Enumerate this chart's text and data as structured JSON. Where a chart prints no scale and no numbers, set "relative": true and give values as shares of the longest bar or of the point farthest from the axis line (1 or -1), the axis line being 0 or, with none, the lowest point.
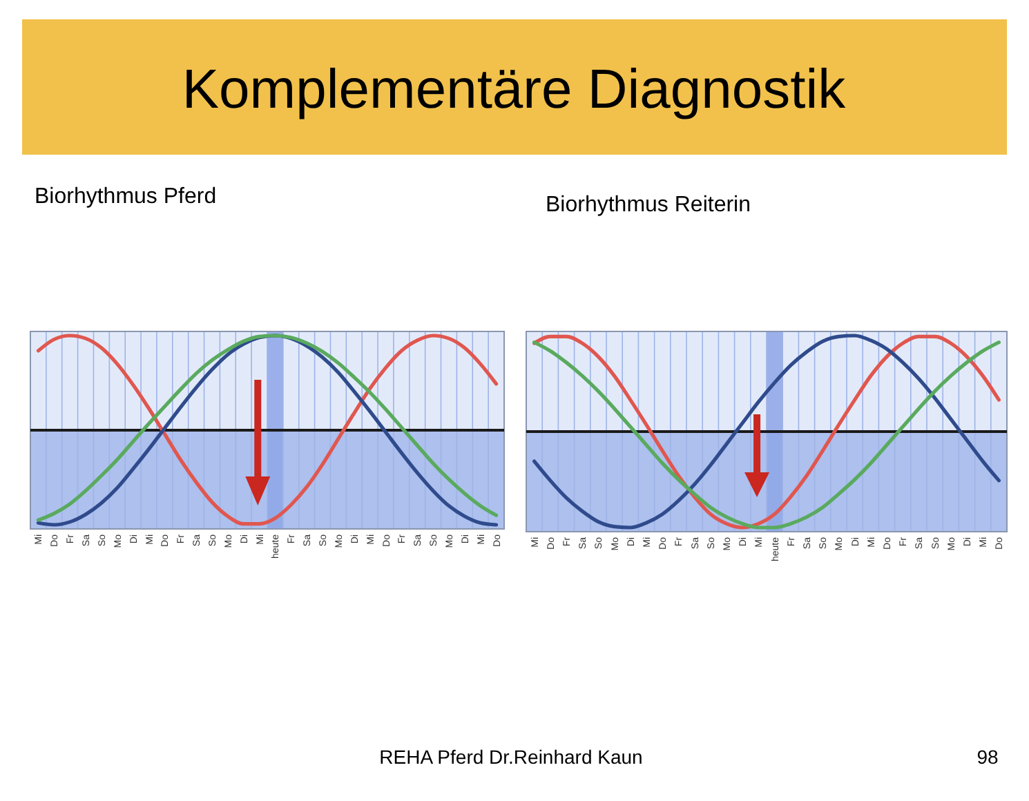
{
  "chart_data": [
    {
      "type": "line",
      "relative": true,
      "title": "Biorhythmus Pferd",
      "grid": "x",
      "annotations": [
        "Komplementäre Diagnostik",
        "REHA Pferd Dr.Reinhard Kaun",
        "98"
      ],
      "categories": [
        "Mi",
        "Do",
        "Fr",
        "Sa",
        "So",
        "Mo",
        "Di",
        "Mi",
        "Do",
        "Fr",
        "Sa",
        "So",
        "Mo",
        "Di",
        "Mi",
        "heute",
        "Fr",
        "Sa",
        "So",
        "Mo",
        "Di",
        "Mi",
        "Do",
        "Fr",
        "Sa",
        "So",
        "Mo",
        "Di",
        "Mi",
        "Do"
      ],
      "bands": [
        {
          "axis": "y",
          "from": -1,
          "to": 0,
          "color": "#adc0ee"
        },
        {
          "axis": "x",
          "from": "heute",
          "to": "heute",
          "color": "#8ea6e6"
        }
      ],
      "series": [
        {
          "color": "#e0574f",
          "values": [
            0.84,
            0.96,
            1.0,
            0.97,
            0.87,
            0.7,
            0.48,
            0.23,
            -0.04,
            -0.31,
            -0.55,
            -0.76,
            -0.91,
            -0.99,
            -0.99,
            -0.93,
            -0.79,
            -0.6,
            -0.36,
            -0.09,
            0.18,
            0.44,
            0.66,
            0.84,
            0.95,
            1.0,
            0.97,
            0.87,
            0.7,
            0.49
          ]
        },
        {
          "color": "#2f4b8c",
          "values": [
            -0.98,
            -1.0,
            -0.97,
            -0.89,
            -0.77,
            -0.61,
            -0.41,
            -0.2,
            0.02,
            0.24,
            0.45,
            0.64,
            0.8,
            0.91,
            0.98,
            1.0,
            0.97,
            0.89,
            0.77,
            0.61,
            0.41,
            0.2,
            -0.02,
            -0.24,
            -0.45,
            -0.64,
            -0.8,
            -0.91,
            -0.98,
            -1.0
          ]
        },
        {
          "color": "#5aaa5e",
          "values": [
            -0.95,
            -0.88,
            -0.78,
            -0.64,
            -0.48,
            -0.31,
            -0.12,
            0.07,
            0.25,
            0.43,
            0.6,
            0.74,
            0.85,
            0.94,
            0.99,
            1.0,
            0.98,
            0.92,
            0.83,
            0.71,
            0.56,
            0.4,
            0.22,
            0.03,
            -0.16,
            -0.35,
            -0.52,
            -0.67,
            -0.8,
            -0.9
          ]
        }
      ]
    },
    {
      "type": "line",
      "relative": true,
      "title": "Biorhythmus Reiterin",
      "grid": "x",
      "categories": [
        "Mi",
        "Do",
        "Fr",
        "Sa",
        "So",
        "Mo",
        "Di",
        "Mi",
        "Do",
        "Fr",
        "Sa",
        "So",
        "Mo",
        "Di",
        "Mi",
        "heute",
        "Fr",
        "Sa",
        "So",
        "Mo",
        "Di",
        "Mi",
        "Do",
        "Fr",
        "Sa",
        "So",
        "Mo",
        "Di",
        "Mi",
        "Do"
      ],
      "bands": [
        {
          "axis": "y",
          "from": -1,
          "to": 0,
          "color": "#adc0ee"
        },
        {
          "axis": "x",
          "from": "heute",
          "to": "heute",
          "color": "#8ea6e6"
        }
      ],
      "series": [
        {
          "color": "#e0574f",
          "values": [
            0.92,
            0.99,
            0.99,
            0.92,
            0.78,
            0.58,
            0.33,
            0.07,
            -0.2,
            -0.46,
            -0.68,
            -0.86,
            -0.96,
            -1.0,
            -0.96,
            -0.86,
            -0.68,
            -0.46,
            -0.2,
            0.07,
            0.33,
            0.58,
            0.78,
            0.92,
            0.99,
            0.99,
            0.92,
            0.78,
            0.58,
            0.33
          ]
        },
        {
          "color": "#2f4b8c",
          "values": [
            -0.31,
            -0.51,
            -0.69,
            -0.83,
            -0.94,
            -0.99,
            -1.0,
            -0.95,
            -0.86,
            -0.72,
            -0.55,
            -0.35,
            -0.13,
            0.09,
            0.31,
            0.51,
            0.69,
            0.83,
            0.94,
            0.99,
            1.0,
            0.95,
            0.86,
            0.72,
            0.55,
            0.35,
            0.13,
            -0.09,
            -0.31,
            -0.51
          ]
        },
        {
          "color": "#5aaa5e",
          "values": [
            0.93,
            0.84,
            0.72,
            0.58,
            0.42,
            0.24,
            0.05,
            -0.14,
            -0.33,
            -0.5,
            -0.65,
            -0.79,
            -0.89,
            -0.96,
            -1.0,
            -1.0,
            -0.96,
            -0.89,
            -0.79,
            -0.65,
            -0.5,
            -0.33,
            -0.14,
            0.05,
            0.24,
            0.42,
            0.58,
            0.72,
            0.84,
            0.93
          ]
        }
      ]
    }
  ]
}
